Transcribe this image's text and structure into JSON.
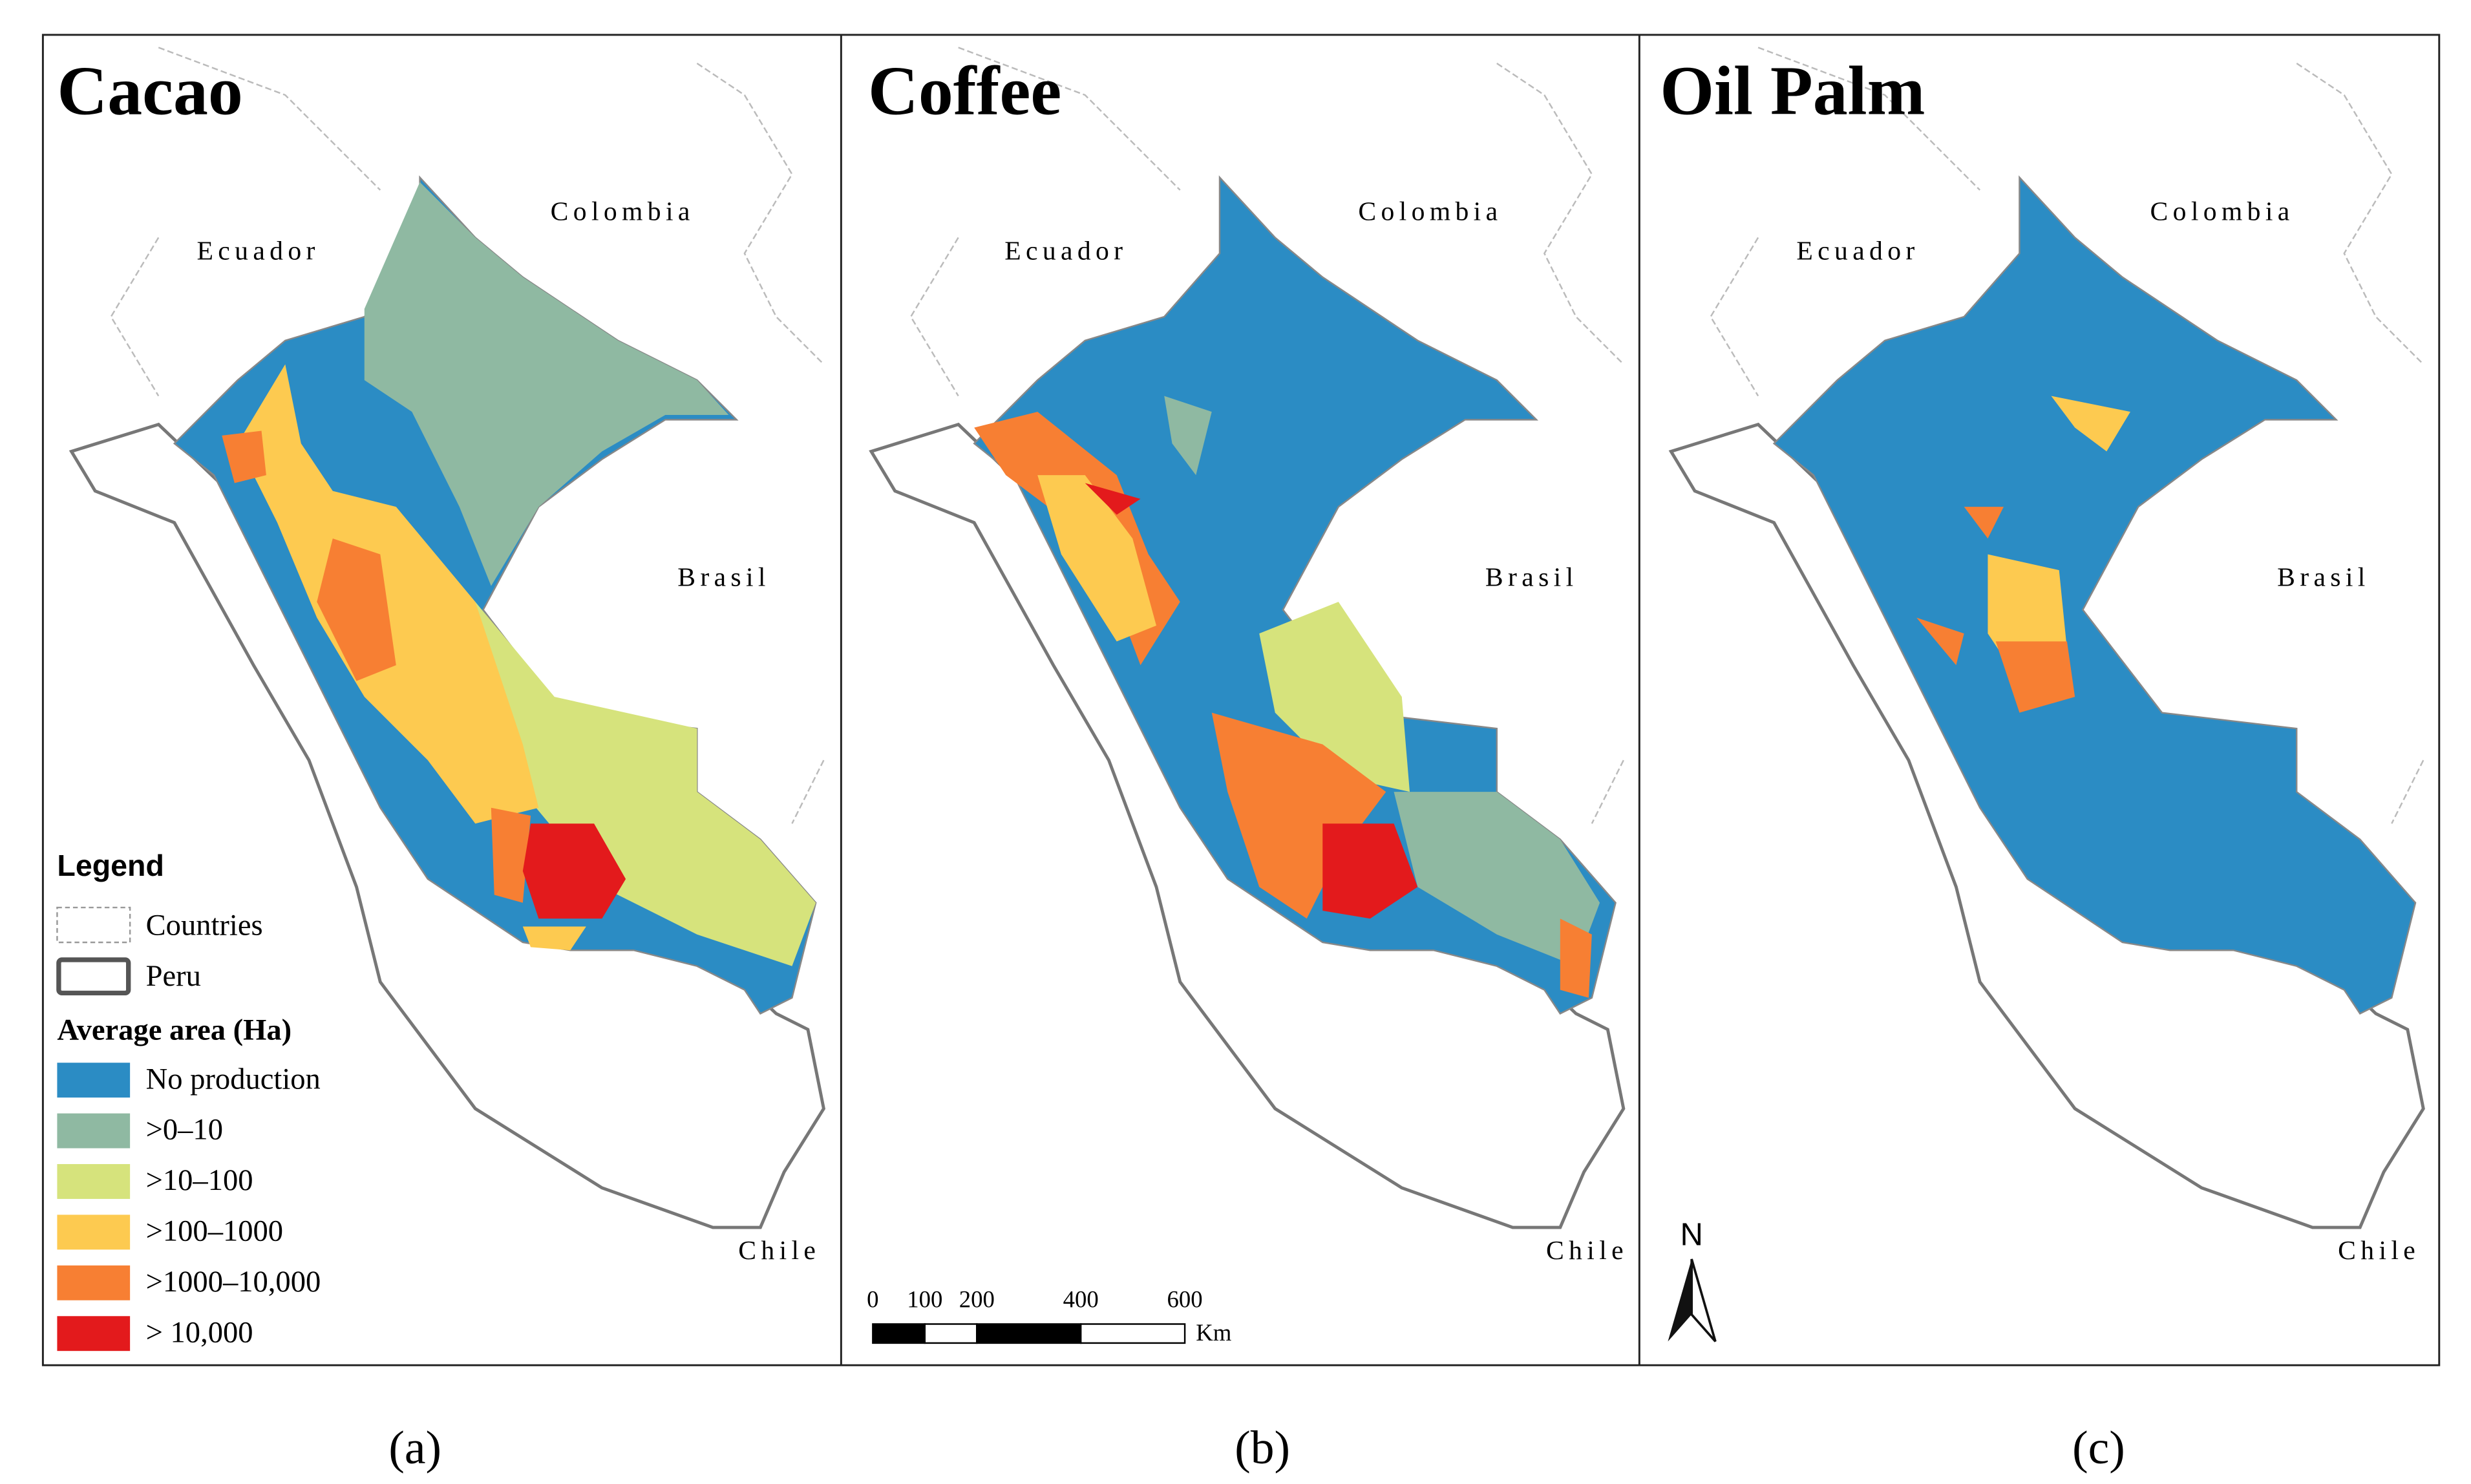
{
  "panels": [
    {
      "title": "Cacao",
      "caption": "(a)",
      "countries": [
        "Colombia",
        "Ecuador",
        "Brasil",
        "Chile"
      ]
    },
    {
      "title": "Coffee",
      "caption": "(b)",
      "countries": [
        "Colombia",
        "Ecuador",
        "Brasil",
        "Chile"
      ]
    },
    {
      "title": "Oil Palm",
      "caption": "(c)",
      "countries": [
        "Colombia",
        "Ecuador",
        "Brasil",
        "Chile"
      ]
    }
  ],
  "legend": {
    "title": "Legend",
    "items": [
      "Countries",
      "Peru"
    ],
    "subtitle": "Average area (Ha)",
    "classes": [
      {
        "label": "No production",
        "color": "#2b8cc4"
      },
      {
        "label": ">0–10",
        "color": "#8fb9a2"
      },
      {
        "label": ">10–100",
        "color": "#d6e37c"
      },
      {
        "label": ">100–1000",
        "color": "#fdca50"
      },
      {
        "label": ">1000–10,000",
        "color": "#f77f33"
      },
      {
        "label": "> 10,000",
        "color": "#e31a1c"
      }
    ]
  },
  "scale_bar": {
    "ticks": [
      0,
      100,
      200,
      400,
      600
    ],
    "unit": "Km"
  },
  "north_arrow": "N"
}
